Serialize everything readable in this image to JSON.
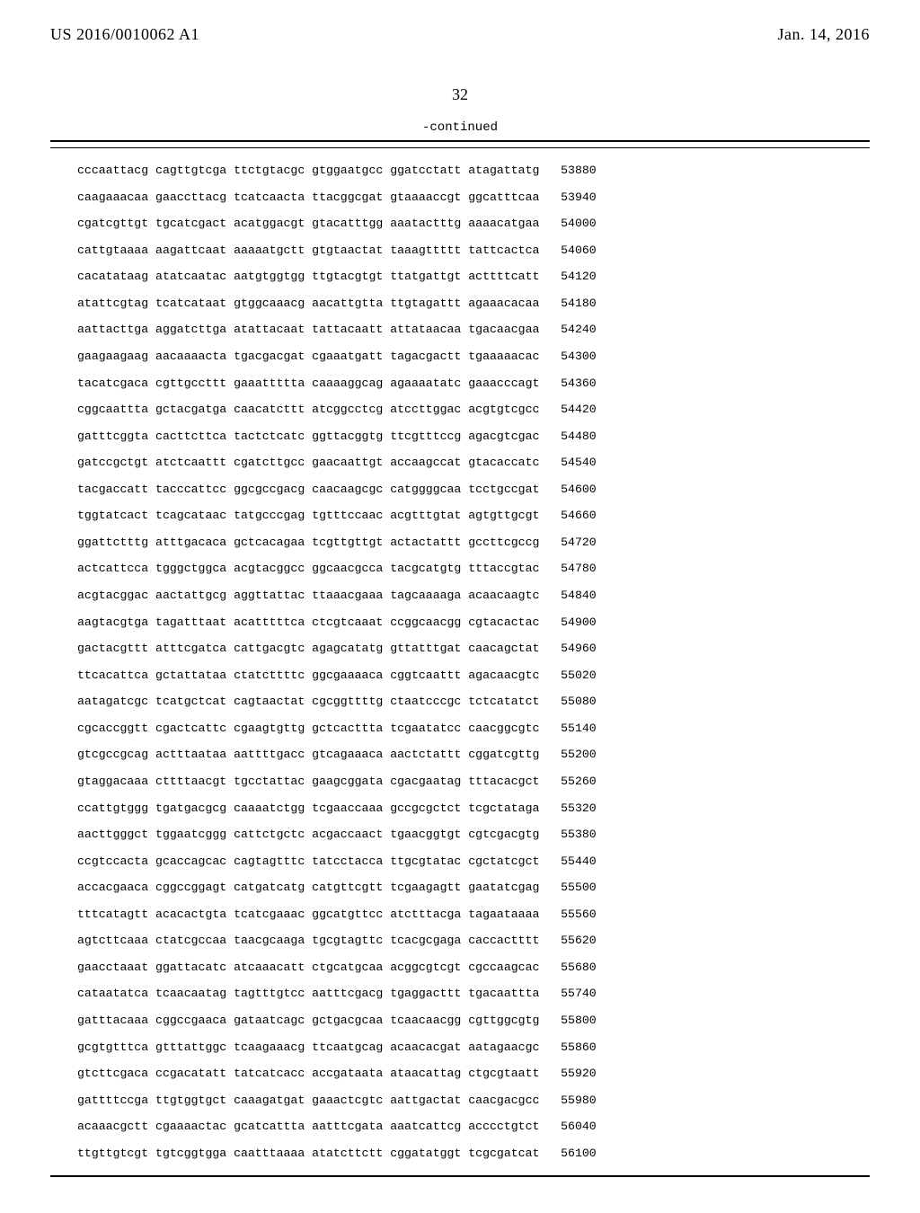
{
  "header": {
    "left": "US 2016/0010062 A1",
    "right": "Jan. 14, 2016"
  },
  "page_number": "32",
  "continued_label": "-continued",
  "sequence_lines": [
    {
      "b1": "cccaattacg",
      "b2": "cagttgtcga",
      "b3": "ttctgtacgc",
      "b4": "gtggaatgcc",
      "b5": "ggatcctatt",
      "b6": "atagattatg",
      "pos": "53880"
    },
    {
      "b1": "caagaaacaa",
      "b2": "gaaccttacg",
      "b3": "tcatcaacta",
      "b4": "ttacggcgat",
      "b5": "gtaaaaccgt",
      "b6": "ggcatttcaa",
      "pos": "53940"
    },
    {
      "b1": "cgatcgttgt",
      "b2": "tgcatcgact",
      "b3": "acatggacgt",
      "b4": "gtacatttgg",
      "b5": "aaatactttg",
      "b6": "aaaacatgaa",
      "pos": "54000"
    },
    {
      "b1": "cattgtaaaa",
      "b2": "aagattcaat",
      "b3": "aaaaatgctt",
      "b4": "gtgtaactat",
      "b5": "taaagttttt",
      "b6": "tattcactca",
      "pos": "54060"
    },
    {
      "b1": "cacatataag",
      "b2": "atatcaatac",
      "b3": "aatgtggtgg",
      "b4": "ttgtacgtgt",
      "b5": "ttatgattgt",
      "b6": "acttttcatt",
      "pos": "54120"
    },
    {
      "b1": "atattcgtag",
      "b2": "tcatcataat",
      "b3": "gtggcaaacg",
      "b4": "aacattgtta",
      "b5": "ttgtagattt",
      "b6": "agaaacacaa",
      "pos": "54180"
    },
    {
      "b1": "aattacttga",
      "b2": "aggatcttga",
      "b3": "atattacaat",
      "b4": "tattacaatt",
      "b5": "attataacaa",
      "b6": "tgacaacgaa",
      "pos": "54240"
    },
    {
      "b1": "gaagaagaag",
      "b2": "aacaaaacta",
      "b3": "tgacgacgat",
      "b4": "cgaaatgatt",
      "b5": "tagacgactt",
      "b6": "tgaaaaacac",
      "pos": "54300"
    },
    {
      "b1": "tacatcgaca",
      "b2": "cgttgccttt",
      "b3": "gaaattttta",
      "b4": "caaaaggcag",
      "b5": "agaaaatatc",
      "b6": "gaaacccagt",
      "pos": "54360"
    },
    {
      "b1": "cggcaattta",
      "b2": "gctacgatga",
      "b3": "caacatcttt",
      "b4": "atcggcctcg",
      "b5": "atccttggac",
      "b6": "acgtgtcgcc",
      "pos": "54420"
    },
    {
      "b1": "gatttcggta",
      "b2": "cacttcttca",
      "b3": "tactctcatc",
      "b4": "ggttacggtg",
      "b5": "ttcgtttccg",
      "b6": "agacgtcgac",
      "pos": "54480"
    },
    {
      "b1": "gatccgctgt",
      "b2": "atctcaattt",
      "b3": "cgatcttgcc",
      "b4": "gaacaattgt",
      "b5": "accaagccat",
      "b6": "gtacaccatc",
      "pos": "54540"
    },
    {
      "b1": "tacgaccatt",
      "b2": "tacccattcc",
      "b3": "ggcgccgacg",
      "b4": "caacaagcgc",
      "b5": "catggggcaa",
      "b6": "tcctgccgat",
      "pos": "54600"
    },
    {
      "b1": "tggtatcact",
      "b2": "tcagcataac",
      "b3": "tatgcccgag",
      "b4": "tgtttccaac",
      "b5": "acgtttgtat",
      "b6": "agtgttgcgt",
      "pos": "54660"
    },
    {
      "b1": "ggattctttg",
      "b2": "atttgacaca",
      "b3": "gctcacagaa",
      "b4": "tcgttgttgt",
      "b5": "actactattt",
      "b6": "gccttcgccg",
      "pos": "54720"
    },
    {
      "b1": "actcattcca",
      "b2": "tgggctggca",
      "b3": "acgtacggcc",
      "b4": "ggcaacgcca",
      "b5": "tacgcatgtg",
      "b6": "tttaccgtac",
      "pos": "54780"
    },
    {
      "b1": "acgtacggac",
      "b2": "aactattgcg",
      "b3": "aggttattac",
      "b4": "ttaaacgaaa",
      "b5": "tagcaaaaga",
      "b6": "acaacaagtc",
      "pos": "54840"
    },
    {
      "b1": "aagtacgtga",
      "b2": "tagatttaat",
      "b3": "acatttttca",
      "b4": "ctcgtcaaat",
      "b5": "ccggcaacgg",
      "b6": "cgtacactac",
      "pos": "54900"
    },
    {
      "b1": "gactacgttt",
      "b2": "atttcgatca",
      "b3": "cattgacgtc",
      "b4": "agagcatatg",
      "b5": "gttatttgat",
      "b6": "caacagctat",
      "pos": "54960"
    },
    {
      "b1": "ttcacattca",
      "b2": "gctattataa",
      "b3": "ctatcttttc",
      "b4": "ggcgaaaaca",
      "b5": "cggtcaattt",
      "b6": "agacaacgtc",
      "pos": "55020"
    },
    {
      "b1": "aatagatcgc",
      "b2": "tcatgctcat",
      "b3": "cagtaactat",
      "b4": "cgcggttttg",
      "b5": "ctaatcccgc",
      "b6": "tctcatatct",
      "pos": "55080"
    },
    {
      "b1": "cgcaccggtt",
      "b2": "cgactcattc",
      "b3": "cgaagtgttg",
      "b4": "gctcacttta",
      "b5": "tcgaatatcc",
      "b6": "caacggcgtc",
      "pos": "55140"
    },
    {
      "b1": "gtcgccgcag",
      "b2": "actttaataa",
      "b3": "aattttgacc",
      "b4": "gtcagaaaca",
      "b5": "aactctattt",
      "b6": "cggatcgttg",
      "pos": "55200"
    },
    {
      "b1": "gtaggacaaa",
      "b2": "cttttaacgt",
      "b3": "tgcctattac",
      "b4": "gaagcggata",
      "b5": "cgacgaatag",
      "b6": "tttacacgct",
      "pos": "55260"
    },
    {
      "b1": "ccattgtggg",
      "b2": "tgatgacgcg",
      "b3": "caaaatctgg",
      "b4": "tcgaaccaaa",
      "b5": "gccgcgctct",
      "b6": "tcgctataga",
      "pos": "55320"
    },
    {
      "b1": "aacttgggct",
      "b2": "tggaatcggg",
      "b3": "cattctgctc",
      "b4": "acgaccaact",
      "b5": "tgaacggtgt",
      "b6": "cgtcgacgtg",
      "pos": "55380"
    },
    {
      "b1": "ccgtccacta",
      "b2": "gcaccagcac",
      "b3": "cagtagtttc",
      "b4": "tatcctacca",
      "b5": "ttgcgtatac",
      "b6": "cgctatcgct",
      "pos": "55440"
    },
    {
      "b1": "accacgaaca",
      "b2": "cggccggagt",
      "b3": "catgatcatg",
      "b4": "catgttcgtt",
      "b5": "tcgaagagtt",
      "b6": "gaatatcgag",
      "pos": "55500"
    },
    {
      "b1": "tttcatagtt",
      "b2": "acacactgta",
      "b3": "tcatcgaaac",
      "b4": "ggcatgttcc",
      "b5": "atctttacga",
      "b6": "tagaataaaa",
      "pos": "55560"
    },
    {
      "b1": "agtcttcaaa",
      "b2": "ctatcgccaa",
      "b3": "taacgcaaga",
      "b4": "tgcgtagttc",
      "b5": "tcacgcgaga",
      "b6": "caccactttt",
      "pos": "55620"
    },
    {
      "b1": "gaacctaaat",
      "b2": "ggattacatc",
      "b3": "atcaaacatt",
      "b4": "ctgcatgcaa",
      "b5": "acggcgtcgt",
      "b6": "cgccaagcac",
      "pos": "55680"
    },
    {
      "b1": "cataatatca",
      "b2": "tcaacaatag",
      "b3": "tagtttgtcc",
      "b4": "aatttcgacg",
      "b5": "tgaggacttt",
      "b6": "tgacaattta",
      "pos": "55740"
    },
    {
      "b1": "gatttacaaa",
      "b2": "cggccgaaca",
      "b3": "gataatcagc",
      "b4": "gctgacgcaa",
      "b5": "tcaacaacgg",
      "b6": "cgttggcgtg",
      "pos": "55800"
    },
    {
      "b1": "gcgtgtttca",
      "b2": "gtttattggc",
      "b3": "tcaagaaacg",
      "b4": "ttcaatgcag",
      "b5": "acaacacgat",
      "b6": "aatagaacgc",
      "pos": "55860"
    },
    {
      "b1": "gtcttcgaca",
      "b2": "ccgacatatt",
      "b3": "tatcatcacc",
      "b4": "accgataata",
      "b5": "ataacattag",
      "b6": "ctgcgtaatt",
      "pos": "55920"
    },
    {
      "b1": "gattttccga",
      "b2": "ttgtggtgct",
      "b3": "caaagatgat",
      "b4": "gaaactcgtc",
      "b5": "aattgactat",
      "b6": "caacgacgcc",
      "pos": "55980"
    },
    {
      "b1": "acaaacgctt",
      "b2": "cgaaaactac",
      "b3": "gcatcattta",
      "b4": "aatttcgata",
      "b5": "aaatcattcg",
      "b6": "acccctgtct",
      "pos": "56040"
    },
    {
      "b1": "ttgttgtcgt",
      "b2": "tgtcggtgga",
      "b3": "caatttaaaa",
      "b4": "atatcttctt",
      "b5": "cggatatggt",
      "b6": "tcgcgatcat",
      "pos": "56100"
    }
  ]
}
